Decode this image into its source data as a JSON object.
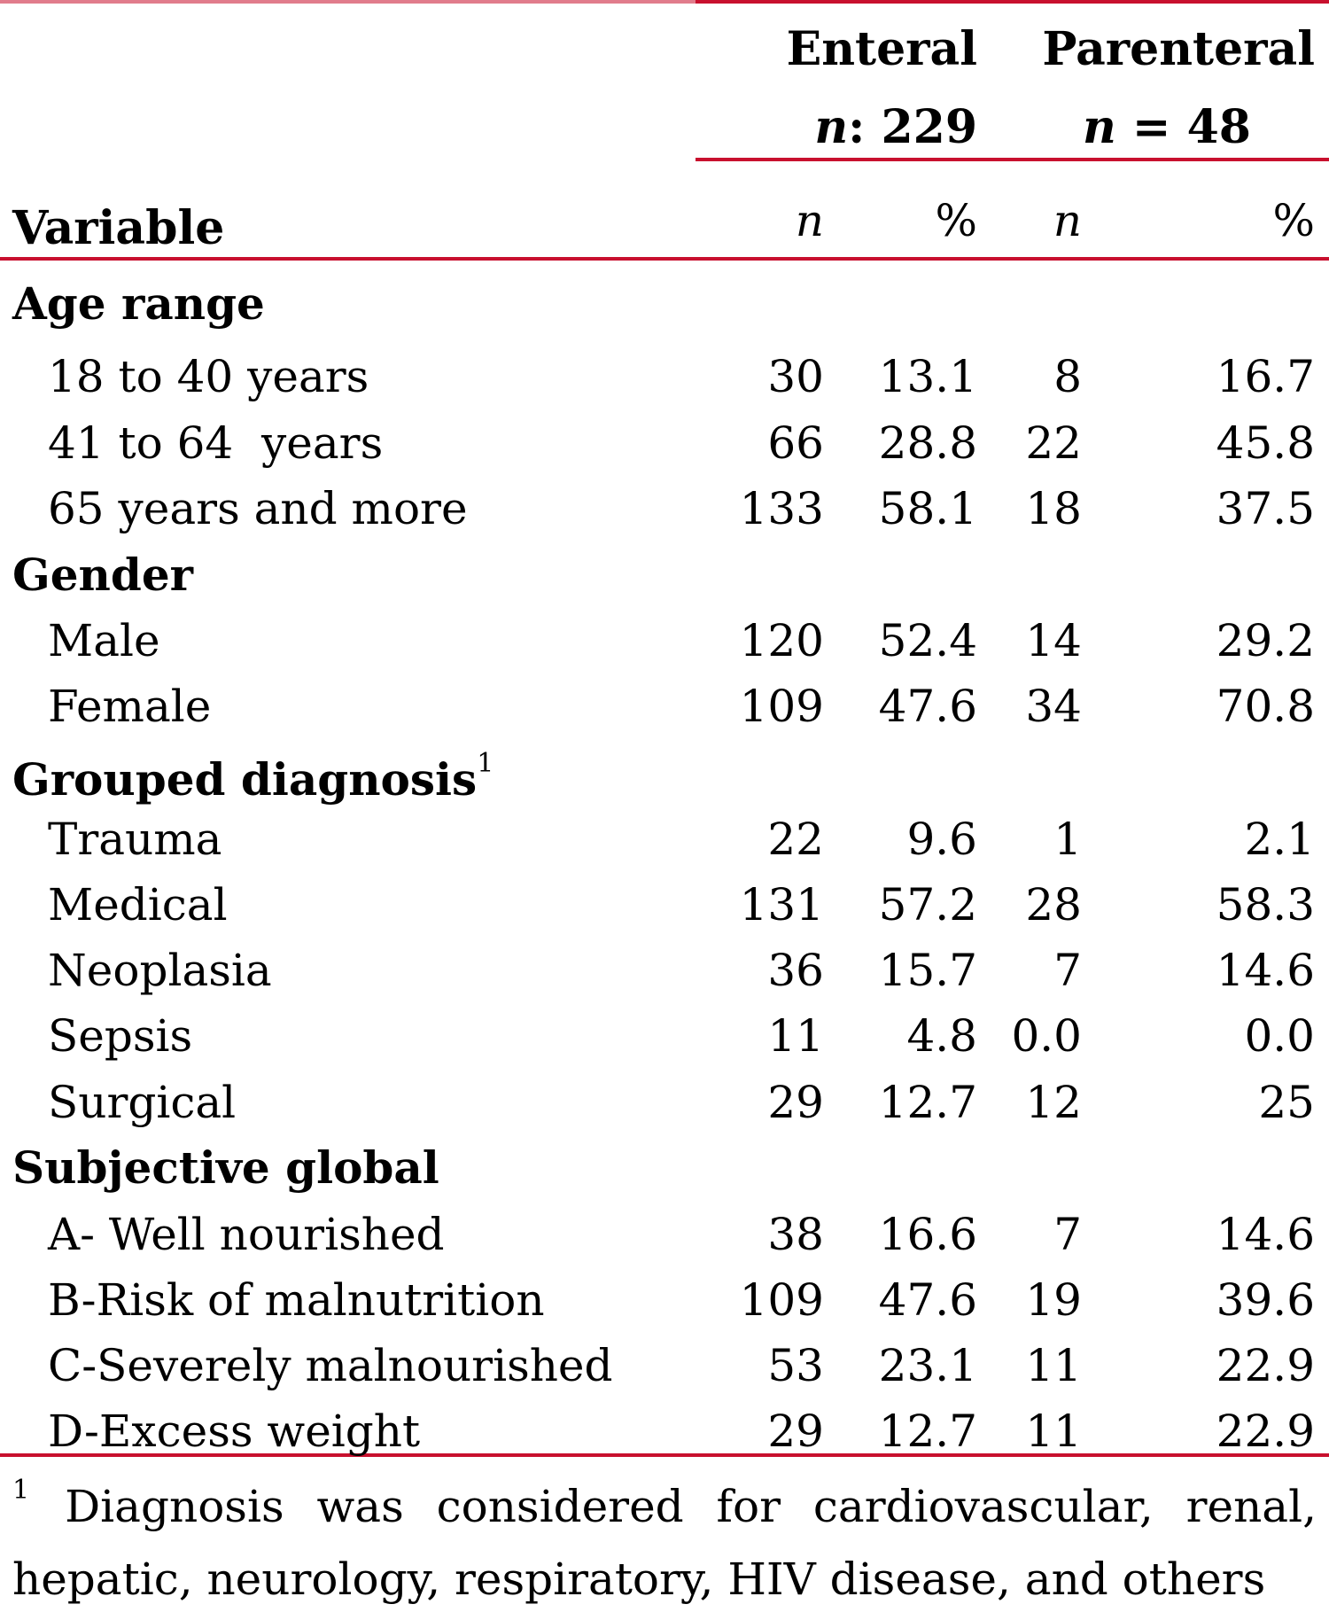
{
  "colors": {
    "rule": "#c8102e",
    "text": "#000000"
  },
  "header": {
    "enteral": {
      "title": "Enteral",
      "n_label": "n",
      "n_rest": ": 229"
    },
    "parenteral": {
      "title": "Parenteral",
      "n_label": "n",
      "n_rest": " = 48"
    },
    "variable": "Variable",
    "col_n": "n",
    "col_pct": "%"
  },
  "sections": [
    {
      "title": "Age range",
      "sup": "",
      "rows": [
        {
          "label": "18 to 40 years",
          "en_n": "30",
          "en_pct": "13.1",
          "pa_n": "8",
          "pa_pct": "16.7"
        },
        {
          "label": "41 to 64  years",
          "en_n": "66",
          "en_pct": "28.8",
          "pa_n": "22",
          "pa_pct": "45.8"
        },
        {
          "label": "65 years and more",
          "en_n": "133",
          "en_pct": "58.1",
          "pa_n": "18",
          "pa_pct": "37.5"
        }
      ]
    },
    {
      "title": "Gender",
      "sup": "",
      "rows": [
        {
          "label": "Male",
          "en_n": "120",
          "en_pct": "52.4",
          "pa_n": "14",
          "pa_pct": "29.2"
        },
        {
          "label": "Female",
          "en_n": "109",
          "en_pct": "47.6",
          "pa_n": "34",
          "pa_pct": "70.8"
        }
      ]
    },
    {
      "title": "Grouped diagnosis",
      "sup": "1",
      "rows": [
        {
          "label": "Trauma",
          "en_n": "22",
          "en_pct": "9.6",
          "pa_n": "1",
          "pa_pct": "2.1"
        },
        {
          "label": "Medical",
          "en_n": "131",
          "en_pct": "57.2",
          "pa_n": "28",
          "pa_pct": "58.3"
        },
        {
          "label": "Neoplasia",
          "en_n": "36",
          "en_pct": "15.7",
          "pa_n": "7",
          "pa_pct": "14.6"
        },
        {
          "label": "Sepsis",
          "en_n": "11",
          "en_pct": "4.8",
          "pa_n": "0.0",
          "pa_pct": "0.0"
        },
        {
          "label": "Surgical",
          "en_n": "29",
          "en_pct": "12.7",
          "pa_n": "12",
          "pa_pct": "25"
        }
      ]
    },
    {
      "title": "Subjective global",
      "sup": "",
      "rows": [
        {
          "label": "A- Well nourished",
          "en_n": "38",
          "en_pct": "16.6",
          "pa_n": "7",
          "pa_pct": "14.6"
        },
        {
          "label": "B-Risk of malnutrition",
          "en_n": "109",
          "en_pct": "47.6",
          "pa_n": "19",
          "pa_pct": "39.6"
        },
        {
          "label": "C-Severely malnourished",
          "en_n": "53",
          "en_pct": "23.1",
          "pa_n": "11",
          "pa_pct": "22.9"
        },
        {
          "label": "D-Excess weight",
          "en_n": "29",
          "en_pct": "12.7",
          "pa_n": "11",
          "pa_pct": "22.9"
        }
      ]
    }
  ],
  "footnote": {
    "mark": "1",
    "line1_words": [
      "Diagnosis",
      "was",
      "considered",
      "for",
      "cardiovascular,",
      "renal,"
    ],
    "line2": "hepatic, neurology, respiratory, HIV disease, and others"
  }
}
